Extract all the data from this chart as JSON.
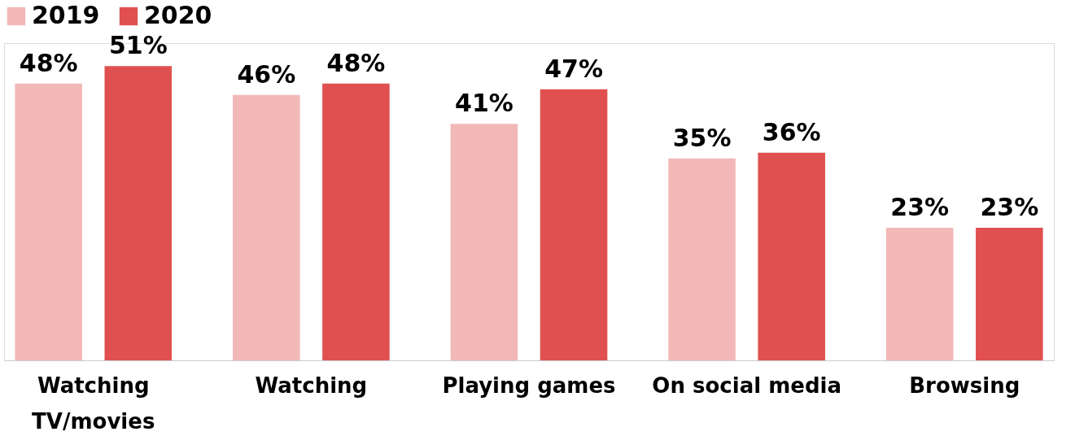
{
  "chart_data": {
    "type": "bar",
    "categories": [
      "Watching TV/movies",
      "Watching",
      "Playing games",
      "On social media",
      "Browsing"
    ],
    "series": [
      {
        "name": "2019",
        "color": "#f2b8b8",
        "values": [
          48,
          46,
          41,
          35,
          23
        ],
        "value_labels": [
          "48%",
          "46%",
          "41%",
          "35%",
          "23%"
        ]
      },
      {
        "name": "2020",
        "color": "#e05050",
        "values": [
          51,
          48,
          47,
          36,
          23
        ],
        "value_labels": [
          "51%",
          "48%",
          "47%",
          "36%",
          "23%"
        ]
      }
    ],
    "legend": "top",
    "grid": false
  }
}
